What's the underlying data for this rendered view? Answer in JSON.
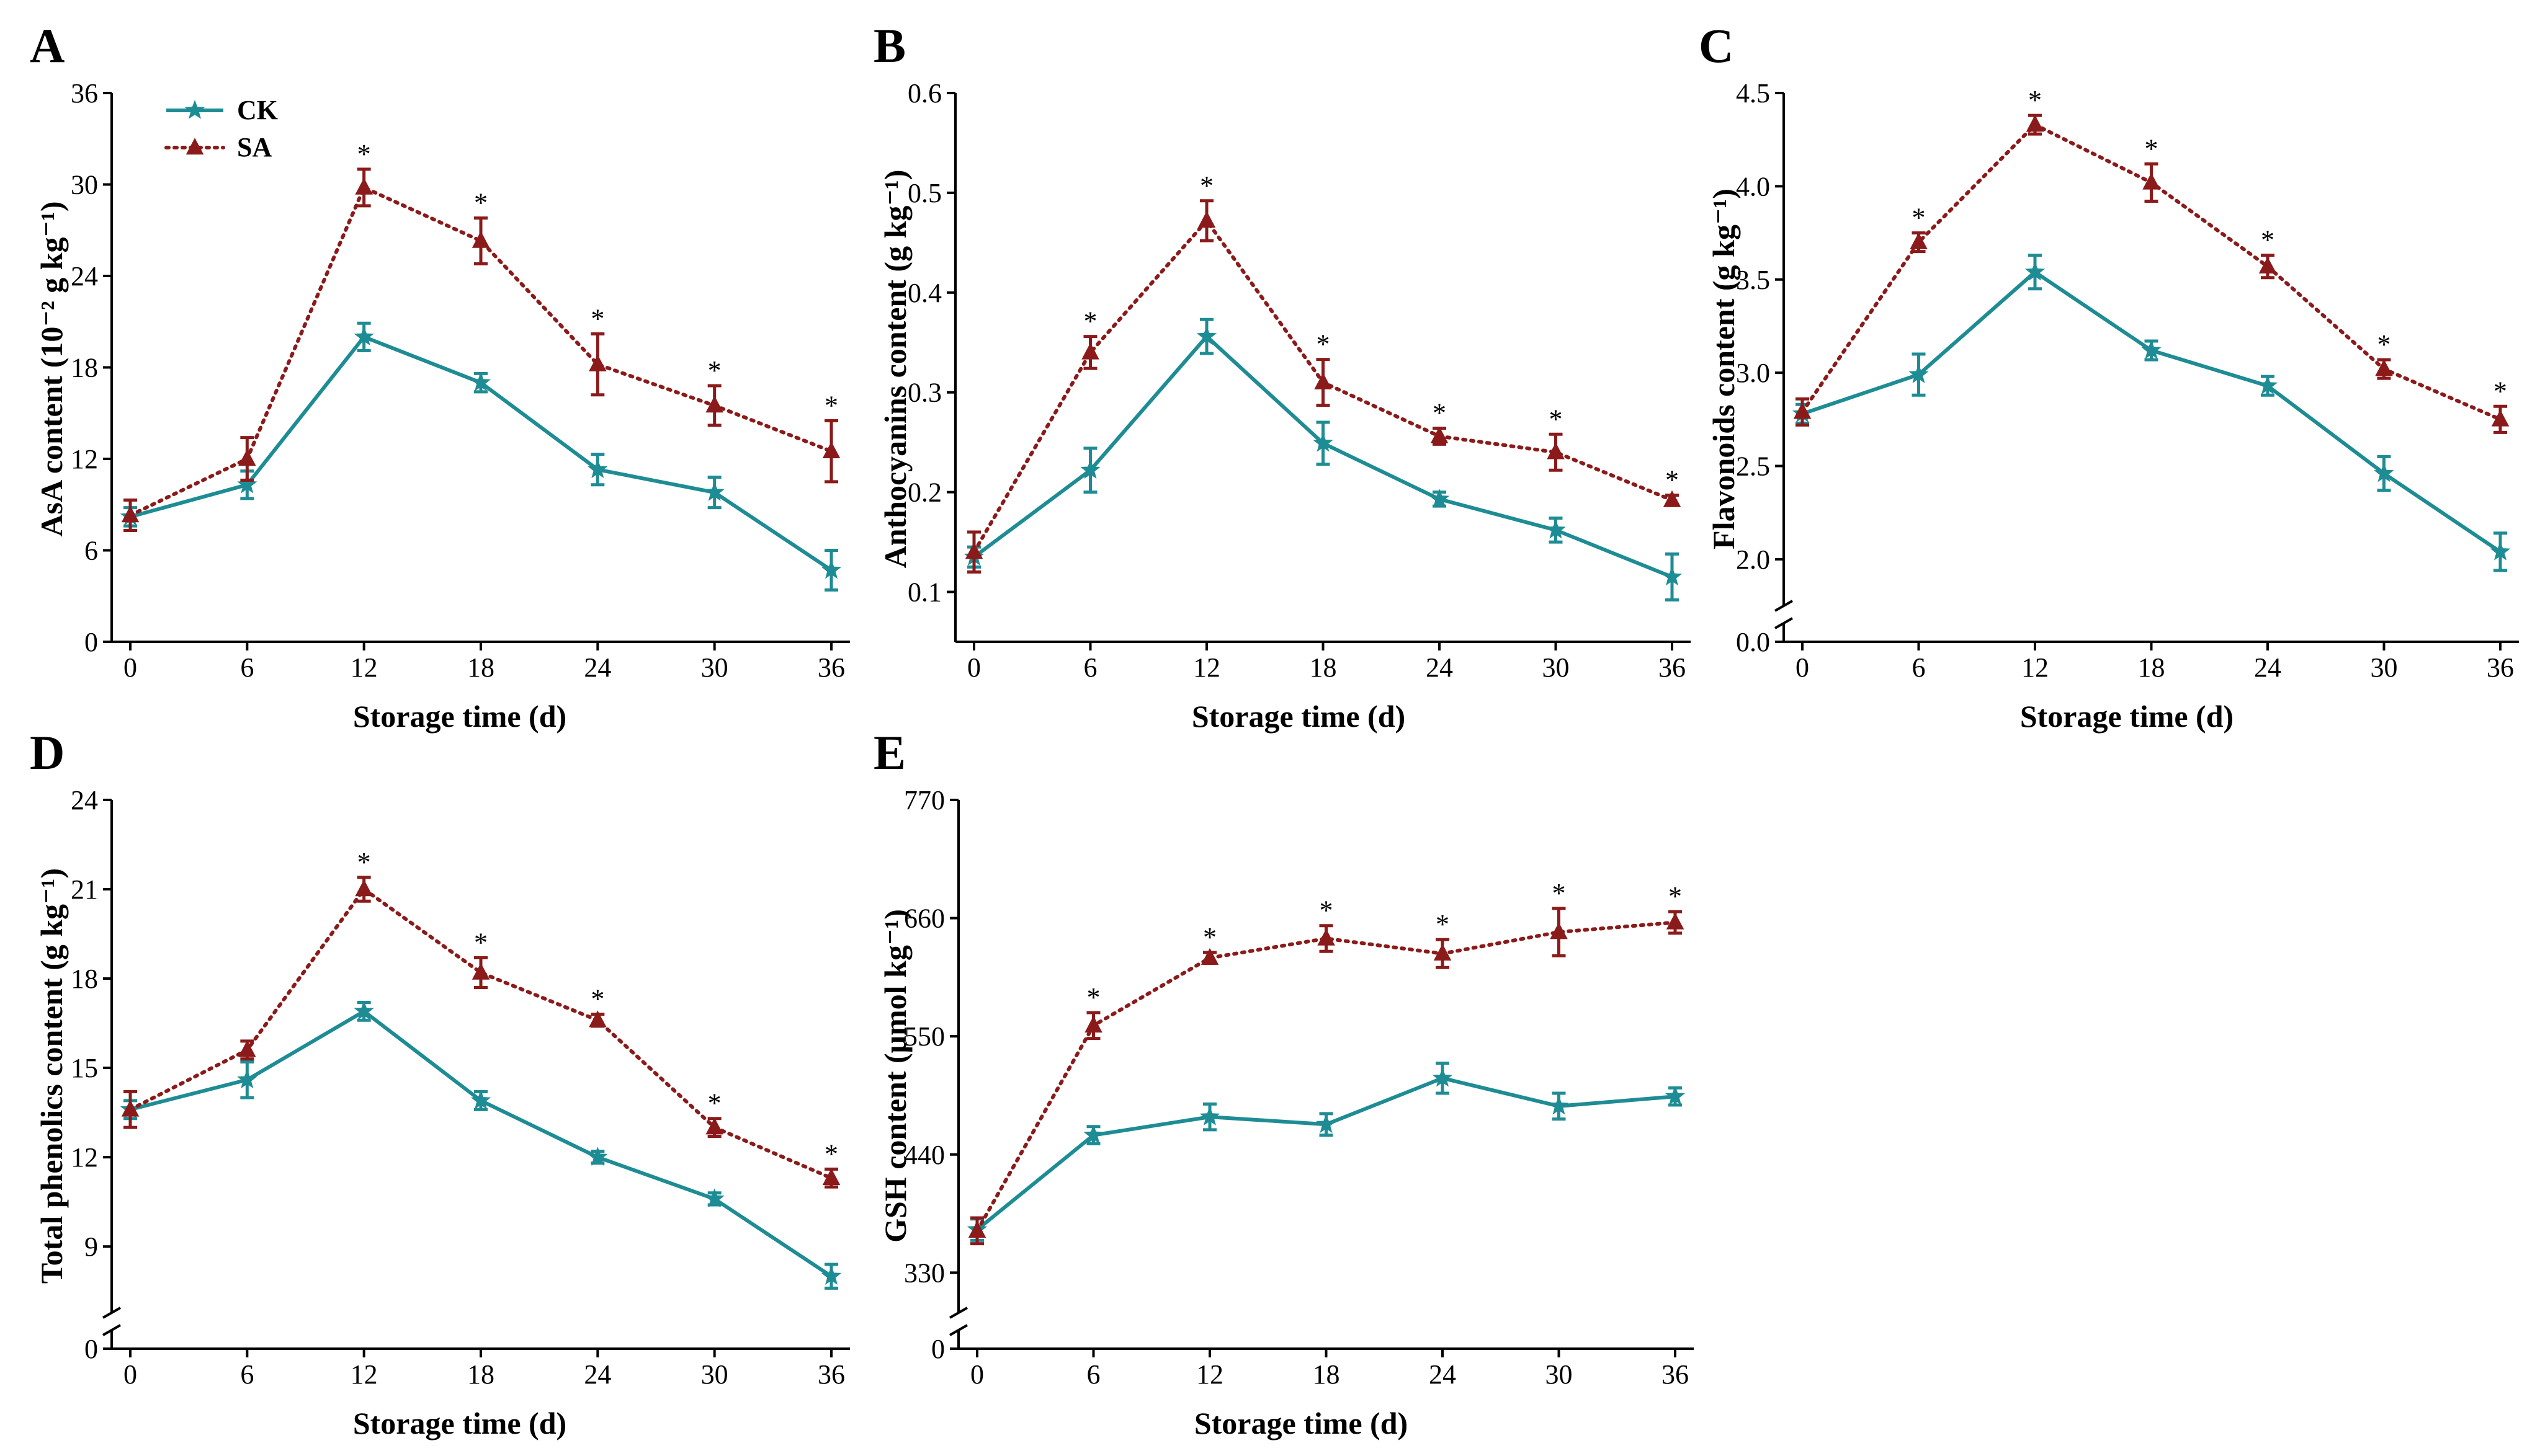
{
  "colors": {
    "ck": "#1e8c94",
    "sa": "#8b1a1a"
  },
  "legend": {
    "ck": "CK",
    "sa": "SA"
  },
  "chart_data": [
    {
      "type": "line",
      "label": "A",
      "xlabel": "Storage time (d)",
      "ylabel": "AsA content (10⁻² g kg⁻¹)",
      "x": [
        0,
        6,
        12,
        18,
        24,
        30,
        36
      ],
      "xticks": [
        "0",
        "6",
        "12",
        "18",
        "24",
        "30",
        "36"
      ],
      "ylim": [
        0,
        36
      ],
      "yticks": [
        0,
        6,
        12,
        18,
        24,
        30,
        36
      ],
      "ytick_labels": [
        "0",
        "6",
        "12",
        "18",
        "24",
        "30",
        "36"
      ],
      "break": null,
      "legend": true,
      "series": [
        {
          "name": "CK",
          "values": [
            8.2,
            10.3,
            20.0,
            17.0,
            11.3,
            9.8,
            4.7
          ],
          "err": [
            0.6,
            0.9,
            0.9,
            0.6,
            1.0,
            1.0,
            1.3
          ]
        },
        {
          "name": "SA",
          "values": [
            8.3,
            12.0,
            29.8,
            26.3,
            18.2,
            15.5,
            12.5
          ],
          "err": [
            1.0,
            1.4,
            1.2,
            1.5,
            2.0,
            1.3,
            2.0
          ],
          "sig": [
            false,
            false,
            true,
            true,
            true,
            true,
            true
          ]
        }
      ],
      "sig_label": "*"
    },
    {
      "type": "line",
      "label": "B",
      "xlabel": "Storage time (d)",
      "ylabel": "Anthocyanins content (g kg⁻¹)",
      "x": [
        0,
        6,
        12,
        18,
        24,
        30,
        36
      ],
      "xticks": [
        "0",
        "6",
        "12",
        "18",
        "24",
        "30",
        "36"
      ],
      "ylim": [
        0.05,
        0.6
      ],
      "yticks": [
        0.1,
        0.2,
        0.3,
        0.4,
        0.5,
        0.6
      ],
      "ytick_labels": [
        "0.1",
        "0.2",
        "0.3",
        "0.4",
        "0.5",
        "0.6"
      ],
      "break": null,
      "legend": false,
      "series": [
        {
          "name": "CK",
          "values": [
            0.135,
            0.222,
            0.356,
            0.249,
            0.193,
            0.162,
            0.115
          ],
          "err": [
            0.01,
            0.022,
            0.017,
            0.021,
            0.007,
            0.012,
            0.023
          ]
        },
        {
          "name": "SA",
          "values": [
            0.14,
            0.34,
            0.472,
            0.31,
            0.256,
            0.24,
            0.192
          ],
          "err": [
            0.02,
            0.016,
            0.02,
            0.023,
            0.008,
            0.018,
            0.005
          ],
          "sig": [
            false,
            true,
            true,
            true,
            true,
            true,
            true
          ]
        }
      ],
      "sig_label": "*"
    },
    {
      "type": "line",
      "label": "C",
      "xlabel": "Storage time (d)",
      "ylabel": "Flavonoids content (g kg⁻¹)",
      "x": [
        0,
        6,
        12,
        18,
        24,
        30,
        36
      ],
      "xticks": [
        "0",
        "6",
        "12",
        "18",
        "24",
        "30",
        "36"
      ],
      "ylim": [
        0,
        4.5
      ],
      "yticks": [
        0,
        2.0,
        2.5,
        3.0,
        3.5,
        4.0,
        4.5
      ],
      "ytick_labels": [
        "0.0",
        "2.0",
        "2.5",
        "3.0",
        "3.5",
        "4.0",
        "4.5"
      ],
      "break": {
        "low": 0,
        "high": 1.85
      },
      "legend": false,
      "series": [
        {
          "name": "CK",
          "values": [
            2.78,
            2.99,
            3.54,
            3.12,
            2.93,
            2.46,
            2.04
          ],
          "err": [
            0.05,
            0.11,
            0.09,
            0.05,
            0.05,
            0.09,
            0.1
          ]
        },
        {
          "name": "SA",
          "values": [
            2.79,
            3.7,
            4.33,
            4.02,
            3.57,
            3.02,
            2.75
          ],
          "err": [
            0.07,
            0.05,
            0.05,
            0.1,
            0.06,
            0.05,
            0.07
          ],
          "sig": [
            false,
            true,
            true,
            true,
            true,
            true,
            true
          ]
        }
      ],
      "sig_label": "*"
    },
    {
      "type": "line",
      "label": "D",
      "xlabel": "Storage time (d)",
      "ylabel": "Total phenolics content (g kg⁻¹)",
      "x": [
        0,
        6,
        12,
        18,
        24,
        30,
        36
      ],
      "xticks": [
        "0",
        "6",
        "12",
        "18",
        "24",
        "30",
        "36"
      ],
      "ylim": [
        0,
        24
      ],
      "yticks": [
        0,
        9,
        12,
        15,
        18,
        21,
        24
      ],
      "ytick_labels": [
        "0",
        "9",
        "12",
        "15",
        "18",
        "21",
        "24"
      ],
      "break": {
        "low": 0,
        "high": 7.4
      },
      "legend": false,
      "series": [
        {
          "name": "CK",
          "values": [
            13.6,
            14.6,
            16.9,
            13.9,
            12.0,
            10.6,
            8.0
          ],
          "err": [
            0.3,
            0.6,
            0.3,
            0.3,
            0.2,
            0.2,
            0.4
          ]
        },
        {
          "name": "SA",
          "values": [
            13.6,
            15.6,
            21.0,
            18.2,
            16.6,
            13.0,
            11.3
          ],
          "err": [
            0.6,
            0.3,
            0.4,
            0.5,
            0.2,
            0.3,
            0.3
          ],
          "sig": [
            false,
            false,
            true,
            true,
            true,
            true,
            true
          ]
        }
      ],
      "sig_label": "*"
    },
    {
      "type": "line",
      "label": "E",
      "xlabel": "Storage time (d)",
      "ylabel": "GSH content (μmol kg⁻¹)",
      "x": [
        0,
        6,
        12,
        18,
        24,
        30,
        36
      ],
      "xticks": [
        "0",
        "6",
        "12",
        "18",
        "24",
        "30",
        "36"
      ],
      "ylim": [
        0,
        770
      ],
      "yticks": [
        0,
        330,
        440,
        550,
        660,
        770
      ],
      "ytick_labels": [
        "0",
        "330",
        "440",
        "550",
        "660",
        "770"
      ],
      "break": {
        "low": 0,
        "high": 310
      },
      "legend": false,
      "series": [
        {
          "name": "CK",
          "values": [
            370,
            458,
            475,
            468,
            511,
            485,
            494
          ],
          "err": [
            10,
            8,
            12,
            10,
            14,
            12,
            8
          ]
        },
        {
          "name": "SA",
          "values": [
            369,
            560,
            623,
            641,
            627,
            647,
            656
          ],
          "err": [
            12,
            12,
            5,
            12,
            13,
            22,
            10
          ],
          "sig": [
            false,
            true,
            true,
            true,
            true,
            true,
            true
          ]
        }
      ],
      "sig_label": "*"
    }
  ]
}
